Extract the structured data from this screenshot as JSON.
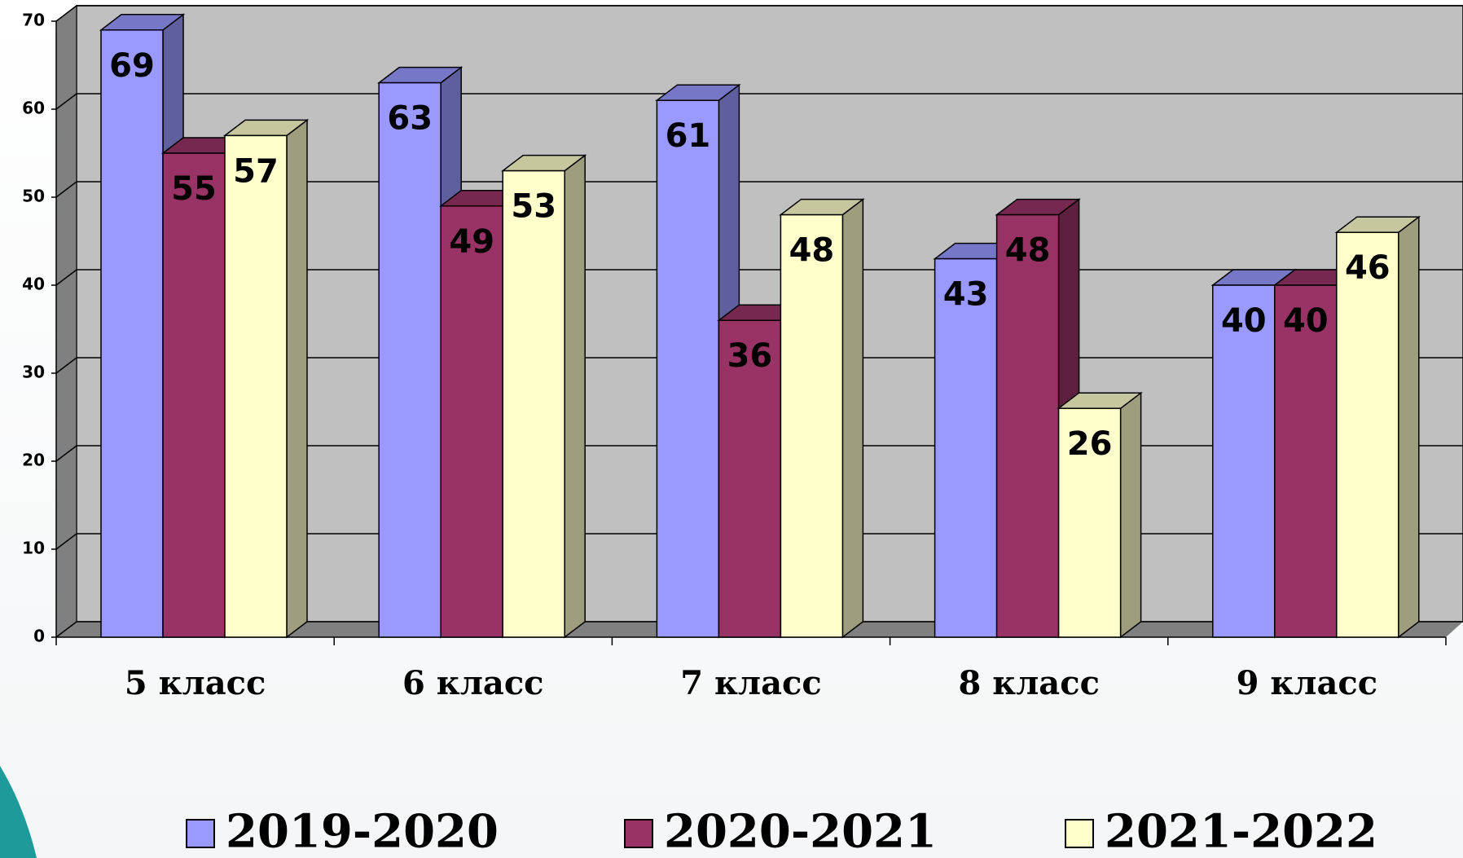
{
  "chart_data": {
    "type": "bar3d",
    "categories": [
      "5 класс",
      "6 класс",
      "7 класс",
      "8 класс",
      "9 класс"
    ],
    "series": [
      {
        "name": "2019-2020",
        "color": "#9999ff",
        "values": [
          69,
          63,
          61,
          43,
          40
        ]
      },
      {
        "name": "2020-2021",
        "color": "#993366",
        "values": [
          55,
          49,
          36,
          48,
          40
        ]
      },
      {
        "name": "2021-2022",
        "color": "#ffffcc",
        "values": [
          57,
          53,
          48,
          26,
          46
        ]
      }
    ],
    "ylim": [
      0,
      70
    ],
    "yticks": [
      0,
      10,
      20,
      30,
      40,
      50,
      60,
      70
    ],
    "grid": true,
    "legend": "bottom"
  }
}
